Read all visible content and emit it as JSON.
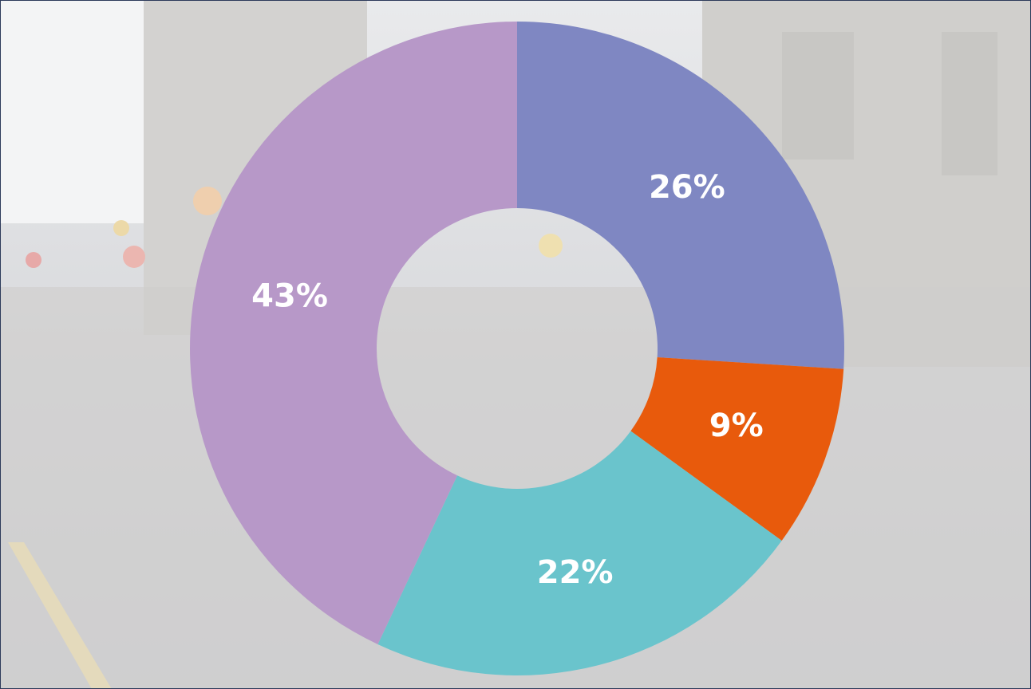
{
  "chart_data": {
    "type": "donut",
    "values": [
      26,
      9,
      22,
      43
    ],
    "value_labels": [
      "26%",
      "9%",
      "22%",
      "43%"
    ],
    "colors": [
      "#7f87c2",
      "#e85a0c",
      "#6ac4cc",
      "#b798c8"
    ]
  }
}
